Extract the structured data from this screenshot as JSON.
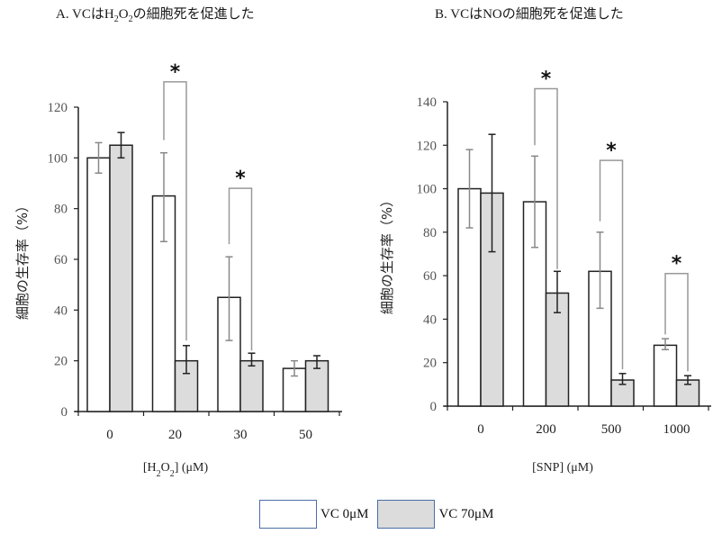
{
  "legend": [
    {
      "label": "VC 0μM",
      "fill": "#ffffff"
    },
    {
      "label": "VC 70μM",
      "fill": "#dcdcdc"
    }
  ],
  "colors": {
    "bar_white": "#ffffff",
    "bar_gray": "#dcdcdc",
    "bar_stroke": "#222222",
    "err_white": "#888888",
    "err_gray": "#222222",
    "bracket": "#999999",
    "legend_border": "#4a6fa5"
  },
  "chart_data": [
    {
      "id": "A",
      "type": "bar",
      "title_parts": [
        "A. VCはH",
        "2",
        "O",
        "2",
        "の細胞死を促進した"
      ],
      "title": "A. VCはH2O2の細胞死を促進した",
      "xlabel": "[H2O2] (μM)",
      "xlabel_parts": [
        "[H",
        "2",
        "O",
        "2",
        "] (μM)"
      ],
      "ylabel": "細胞の生存率（%）",
      "ylim": [
        0,
        120
      ],
      "yticks": [
        0,
        20,
        40,
        60,
        80,
        100,
        120
      ],
      "categories": [
        "0",
        "20",
        "30",
        "50"
      ],
      "series": [
        {
          "name": "VC 0μM",
          "values": [
            100,
            85,
            45,
            17
          ],
          "err_low": [
            94,
            67,
            28,
            14
          ],
          "err_high": [
            106,
            102,
            61,
            20
          ]
        },
        {
          "name": "VC 70μM",
          "values": [
            105,
            20,
            20,
            20
          ],
          "err_low": [
            100,
            15,
            18,
            17
          ],
          "err_high": [
            110,
            26,
            23,
            22
          ]
        }
      ],
      "significance": [
        {
          "category": "20",
          "label": "*",
          "bracket_top": 130,
          "left_drop": 107,
          "right_drop": 28
        },
        {
          "category": "30",
          "label": "*",
          "bracket_top": 88,
          "left_drop": 66,
          "right_drop": 24
        }
      ]
    },
    {
      "id": "B",
      "type": "bar",
      "title": "B. VCはNOの細胞死を促進した",
      "xlabel": "[SNP] (μM)",
      "ylabel": "細胞の生存率（%）",
      "ylim": [
        0,
        140
      ],
      "yticks": [
        0,
        20,
        40,
        60,
        80,
        100,
        120,
        140
      ],
      "categories": [
        "0",
        "200",
        "500",
        "1000"
      ],
      "series": [
        {
          "name": "VC 0μM",
          "values": [
            100,
            94,
            62,
            28
          ],
          "err_low": [
            82,
            73,
            45,
            26
          ],
          "err_high": [
            118,
            115,
            80,
            31
          ]
        },
        {
          "name": "VC 70μM",
          "values": [
            98,
            52,
            12,
            12
          ],
          "err_low": [
            71,
            43,
            10,
            10
          ],
          "err_high": [
            125,
            62,
            15,
            14
          ]
        }
      ],
      "significance": [
        {
          "category": "200",
          "label": "*",
          "bracket_top": 146,
          "left_drop": 120,
          "right_drop": 63
        },
        {
          "category": "500",
          "label": "*",
          "bracket_top": 113,
          "left_drop": 85,
          "right_drop": 17
        },
        {
          "category": "1000",
          "label": "*",
          "bracket_top": 61,
          "left_drop": 33,
          "right_drop": 16
        }
      ]
    }
  ]
}
